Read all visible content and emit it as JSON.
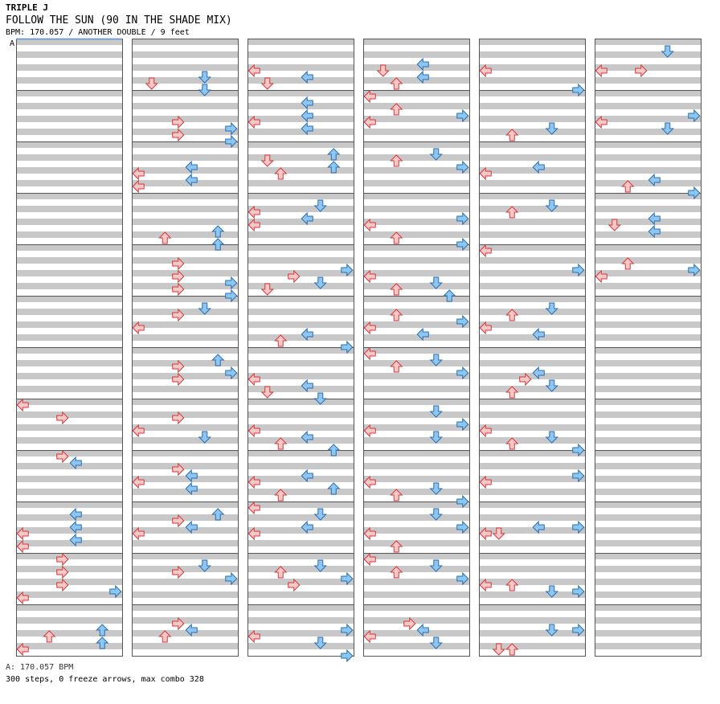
{
  "header": {
    "artist": "TRIPLE J",
    "title": "FOLLOW THE SUN (90 IN THE SHADE MIX)",
    "info": "BPM: 170.057 / ANOTHER DOUBLE / 9 feet"
  },
  "section_marker": "A",
  "footer": {
    "bpm_line": "A: 170.057 BPM",
    "stats_line": "300 steps, 0 freeze arrows, max combo 328"
  },
  "colors": {
    "beat_band": "#c8c8c8",
    "measure_border": "#555555",
    "red_fill": "#f7c6c6",
    "red_stroke": "#d23a3a",
    "blue_fill": "#8ec6ee",
    "blue_stroke": "#2a6db6",
    "marker_line": "#5a8fd0"
  },
  "chart": {
    "columns": 6,
    "measures_per_column": 12,
    "lanes": [
      "L1",
      "D1",
      "U1",
      "R1",
      "L2",
      "D2",
      "U2",
      "R2"
    ],
    "rows_per_measure": 8,
    "notes": [
      [
        0,
        7,
        0,
        "L"
      ],
      [
        0,
        7,
        2,
        "R"
      ],
      [
        0,
        8,
        0,
        "R"
      ],
      [
        0,
        8,
        1,
        "L"
      ],
      [
        0,
        9,
        1,
        "L"
      ],
      [
        0,
        9,
        3,
        "L"
      ],
      [
        0,
        9,
        4,
        "L"
      ],
      [
        0,
        9,
        5,
        "L"
      ],
      [
        0,
        9,
        6,
        "L"
      ],
      [
        0,
        10,
        0,
        "R"
      ],
      [
        0,
        10,
        2,
        "R"
      ],
      [
        0,
        10,
        4,
        "R"
      ],
      [
        0,
        10,
        5,
        "R"
      ],
      [
        0,
        10,
        6,
        "L"
      ],
      [
        0,
        11,
        3,
        "U"
      ],
      [
        0,
        11,
        4,
        "U"
      ],
      [
        0,
        11,
        5,
        "U"
      ],
      [
        0,
        11,
        6,
        "L"
      ],
      [
        1,
        0,
        5,
        "D"
      ],
      [
        1,
        0,
        6,
        "D"
      ],
      [
        1,
        0,
        7,
        "D"
      ],
      [
        1,
        1,
        7,
        "R"
      ],
      [
        1,
        1,
        5,
        "R"
      ],
      [
        1,
        1,
        6,
        "R"
      ],
      [
        1,
        1,
        4,
        "R"
      ],
      [
        1,
        2,
        3,
        "L"
      ],
      [
        1,
        2,
        4,
        "L"
      ],
      [
        1,
        2,
        5,
        "L"
      ],
      [
        1,
        2,
        6,
        "L"
      ],
      [
        1,
        3,
        5,
        "U"
      ],
      [
        1,
        3,
        6,
        "U"
      ],
      [
        1,
        3,
        7,
        "U"
      ],
      [
        1,
        4,
        2,
        "R"
      ],
      [
        1,
        4,
        4,
        "R"
      ],
      [
        1,
        4,
        5,
        "R"
      ],
      [
        1,
        4,
        6,
        "R"
      ],
      [
        1,
        4,
        7,
        "R"
      ],
      [
        1,
        5,
        1,
        "D"
      ],
      [
        1,
        5,
        2,
        "R"
      ],
      [
        1,
        5,
        4,
        "L"
      ],
      [
        1,
        6,
        1,
        "U"
      ],
      [
        1,
        6,
        2,
        "R"
      ],
      [
        1,
        6,
        3,
        "R"
      ],
      [
        1,
        6,
        4,
        "R"
      ],
      [
        1,
        7,
        2,
        "R"
      ],
      [
        1,
        7,
        4,
        "L"
      ],
      [
        1,
        7,
        5,
        "D"
      ],
      [
        1,
        8,
        2,
        "R"
      ],
      [
        1,
        8,
        3,
        "L"
      ],
      [
        1,
        8,
        4,
        "L"
      ],
      [
        1,
        8,
        5,
        "L"
      ],
      [
        1,
        9,
        1,
        "U"
      ],
      [
        1,
        9,
        2,
        "R"
      ],
      [
        1,
        9,
        3,
        "L"
      ],
      [
        1,
        9,
        4,
        "L"
      ],
      [
        1,
        10,
        1,
        "D"
      ],
      [
        1,
        10,
        2,
        "R"
      ],
      [
        1,
        10,
        3,
        "R"
      ],
      [
        1,
        11,
        2,
        "R"
      ],
      [
        1,
        11,
        3,
        "L"
      ],
      [
        1,
        11,
        4,
        "U"
      ],
      [
        2,
        0,
        4,
        "L"
      ],
      [
        2,
        0,
        5,
        "L"
      ],
      [
        2,
        0,
        6,
        "D"
      ],
      [
        2,
        1,
        1,
        "L"
      ],
      [
        2,
        1,
        3,
        "L"
      ],
      [
        2,
        1,
        4,
        "L"
      ],
      [
        2,
        1,
        5,
        "L"
      ],
      [
        2,
        2,
        1,
        "U"
      ],
      [
        2,
        2,
        2,
        "D"
      ],
      [
        2,
        2,
        3,
        "U"
      ],
      [
        2,
        2,
        4,
        "U"
      ],
      [
        2,
        3,
        1,
        "D"
      ],
      [
        2,
        3,
        2,
        "L"
      ],
      [
        2,
        3,
        3,
        "L"
      ],
      [
        2,
        3,
        4,
        "L"
      ],
      [
        2,
        4,
        3,
        "R"
      ],
      [
        2,
        4,
        4,
        "R"
      ],
      [
        2,
        4,
        5,
        "D"
      ],
      [
        2,
        4,
        6,
        "D"
      ],
      [
        2,
        5,
        6,
        "U"
      ],
      [
        2,
        5,
        7,
        "R"
      ],
      [
        2,
        5,
        5,
        "L"
      ],
      [
        2,
        6,
        4,
        "L"
      ],
      [
        2,
        6,
        5,
        "L"
      ],
      [
        2,
        6,
        6,
        "D"
      ],
      [
        2,
        6,
        7,
        "D"
      ],
      [
        2,
        7,
        4,
        "L"
      ],
      [
        2,
        7,
        5,
        "L"
      ],
      [
        2,
        7,
        6,
        "U"
      ],
      [
        2,
        7,
        7,
        "U"
      ],
      [
        2,
        8,
        3,
        "L"
      ],
      [
        2,
        8,
        4,
        "L"
      ],
      [
        2,
        8,
        5,
        "U"
      ],
      [
        2,
        8,
        6,
        "U"
      ],
      [
        2,
        9,
        1,
        "D"
      ],
      [
        2,
        9,
        3,
        "L"
      ],
      [
        2,
        9,
        4,
        "L"
      ],
      [
        2,
        9,
        0,
        "L"
      ],
      [
        2,
        10,
        1,
        "D"
      ],
      [
        2,
        10,
        2,
        "U"
      ],
      [
        2,
        10,
        3,
        "R"
      ],
      [
        2,
        10,
        4,
        "R"
      ],
      [
        2,
        11,
        3,
        "R"
      ],
      [
        2,
        11,
        4,
        "L"
      ],
      [
        2,
        11,
        5,
        "D"
      ],
      [
        2,
        11,
        7,
        "R"
      ],
      [
        3,
        0,
        5,
        "L"
      ],
      [
        3,
        0,
        6,
        "U"
      ],
      [
        3,
        0,
        4,
        "D"
      ],
      [
        3,
        0,
        3,
        "L"
      ],
      [
        3,
        1,
        2,
        "U"
      ],
      [
        3,
        1,
        3,
        "R"
      ],
      [
        3,
        1,
        4,
        "L"
      ],
      [
        3,
        1,
        0,
        "L"
      ],
      [
        3,
        2,
        1,
        "D"
      ],
      [
        3,
        2,
        2,
        "U"
      ],
      [
        3,
        2,
        3,
        "R"
      ],
      [
        3,
        3,
        3,
        "R"
      ],
      [
        3,
        3,
        4,
        "L"
      ],
      [
        3,
        3,
        6,
        "U"
      ],
      [
        3,
        3,
        7,
        "R"
      ],
      [
        3,
        4,
        4,
        "L"
      ],
      [
        3,
        4,
        5,
        "D"
      ],
      [
        3,
        4,
        6,
        "U"
      ],
      [
        3,
        4,
        7,
        "U"
      ],
      [
        3,
        5,
        2,
        "U"
      ],
      [
        3,
        5,
        3,
        "R"
      ],
      [
        3,
        5,
        4,
        "L"
      ],
      [
        3,
        5,
        5,
        "L"
      ],
      [
        3,
        6,
        0,
        "L"
      ],
      [
        3,
        6,
        1,
        "D"
      ],
      [
        3,
        6,
        2,
        "U"
      ],
      [
        3,
        6,
        3,
        "R"
      ],
      [
        3,
        7,
        1,
        "D"
      ],
      [
        3,
        7,
        3,
        "R"
      ],
      [
        3,
        7,
        4,
        "L"
      ],
      [
        3,
        7,
        5,
        "D"
      ],
      [
        3,
        8,
        4,
        "L"
      ],
      [
        3,
        8,
        5,
        "D"
      ],
      [
        3,
        8,
        6,
        "U"
      ],
      [
        3,
        8,
        7,
        "R"
      ],
      [
        3,
        9,
        1,
        "D"
      ],
      [
        3,
        9,
        3,
        "R"
      ],
      [
        3,
        9,
        4,
        "L"
      ],
      [
        3,
        9,
        6,
        "U"
      ],
      [
        3,
        10,
        0,
        "L"
      ],
      [
        3,
        10,
        1,
        "D"
      ],
      [
        3,
        10,
        2,
        "U"
      ],
      [
        3,
        10,
        3,
        "R"
      ],
      [
        3,
        11,
        2,
        "R"
      ],
      [
        3,
        11,
        3,
        "L"
      ],
      [
        3,
        11,
        4,
        "L"
      ],
      [
        3,
        11,
        5,
        "D"
      ],
      [
        4,
        0,
        4,
        "L"
      ],
      [
        4,
        0,
        7,
        "R"
      ],
      [
        4,
        1,
        6,
        "U"
      ],
      [
        4,
        1,
        5,
        "D"
      ],
      [
        4,
        2,
        3,
        "L"
      ],
      [
        4,
        2,
        4,
        "L"
      ],
      [
        4,
        3,
        1,
        "D"
      ],
      [
        4,
        3,
        2,
        "U"
      ],
      [
        4,
        4,
        0,
        "L"
      ],
      [
        4,
        4,
        3,
        "R"
      ],
      [
        4,
        5,
        1,
        "D"
      ],
      [
        4,
        5,
        2,
        "U"
      ],
      [
        4,
        5,
        4,
        "L"
      ],
      [
        4,
        5,
        5,
        "L"
      ],
      [
        4,
        6,
        3,
        "L"
      ],
      [
        4,
        6,
        6,
        "U"
      ],
      [
        4,
        6,
        5,
        "D"
      ],
      [
        4,
        6,
        4,
        "R"
      ],
      [
        4,
        7,
        6,
        "U"
      ],
      [
        4,
        7,
        7,
        "R"
      ],
      [
        4,
        7,
        5,
        "D"
      ],
      [
        4,
        7,
        4,
        "L"
      ],
      [
        4,
        8,
        3,
        "R"
      ],
      [
        4,
        8,
        4,
        "L"
      ],
      [
        4,
        9,
        3,
        "R"
      ],
      [
        4,
        9,
        4,
        "L"
      ],
      [
        4,
        9,
        3,
        "L"
      ],
      [
        4,
        9,
        4,
        "D"
      ],
      [
        4,
        10,
        5,
        "D"
      ],
      [
        4,
        10,
        4,
        "U"
      ],
      [
        4,
        10,
        5,
        "R"
      ],
      [
        4,
        10,
        4,
        "L"
      ],
      [
        4,
        11,
        3,
        "R"
      ],
      [
        4,
        11,
        6,
        "U"
      ],
      [
        4,
        11,
        3,
        "D"
      ],
      [
        4,
        11,
        6,
        "D"
      ],
      [
        5,
        0,
        1,
        "D"
      ],
      [
        5,
        0,
        4,
        "L"
      ],
      [
        5,
        0,
        4,
        "R"
      ],
      [
        5,
        1,
        3,
        "R"
      ],
      [
        5,
        1,
        4,
        "L"
      ],
      [
        5,
        1,
        5,
        "D"
      ],
      [
        5,
        2,
        6,
        "U"
      ],
      [
        5,
        2,
        7,
        "R"
      ],
      [
        5,
        2,
        5,
        "L"
      ],
      [
        5,
        3,
        4,
        "D"
      ],
      [
        5,
        3,
        5,
        "L"
      ],
      [
        5,
        3,
        3,
        "L"
      ],
      [
        5,
        4,
        2,
        "U"
      ],
      [
        5,
        4,
        4,
        "L"
      ],
      [
        5,
        4,
        3,
        "R"
      ]
    ]
  }
}
